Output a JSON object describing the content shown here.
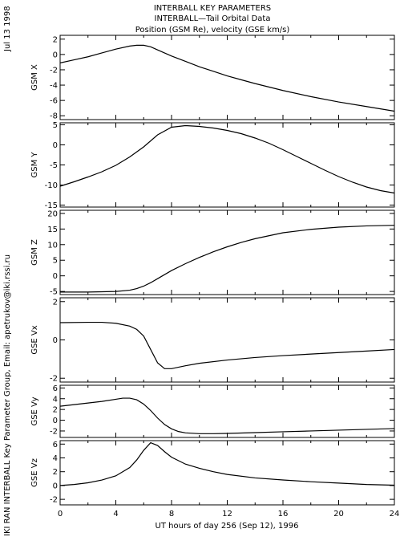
{
  "header": {
    "date": "Jul 13 1998",
    "line1": "INTERBALL KEY PARAMETERS",
    "line2": "INTERBALL—Tail Orbital Data",
    "line3": "Position (GSM Re), velocity (GSE km/s)"
  },
  "credit": "IKI RAN INTERBALL Key Parameter Group, Email: apetrukov@iki.rssi.ru",
  "chart_data": {
    "type": "line",
    "xlabel": "UT hours of day 256 (Sep 12), 1996",
    "xlim": [
      0,
      24
    ],
    "xticks": [
      0,
      4,
      8,
      12,
      16,
      20,
      24
    ],
    "panels": [
      {
        "ylabel": "GSM X",
        "ylim": [
          -8.5,
          2.5
        ],
        "yticks": [
          2,
          0,
          -2,
          -4,
          -6,
          -8
        ],
        "series": {
          "x": [
            0,
            1,
            2,
            3,
            4,
            5,
            5.5,
            6,
            6.5,
            7,
            8,
            9,
            10,
            11,
            12,
            13,
            14,
            16,
            18,
            20,
            22,
            24
          ],
          "y": [
            -1.1,
            -0.7,
            -0.3,
            0.2,
            0.7,
            1.1,
            1.2,
            1.2,
            1.0,
            0.6,
            -0.2,
            -0.9,
            -1.6,
            -2.2,
            -2.8,
            -3.3,
            -3.8,
            -4.7,
            -5.5,
            -6.2,
            -6.8,
            -7.4
          ]
        }
      },
      {
        "ylabel": "GSM Y",
        "ylim": [
          -15.5,
          5.5
        ],
        "yticks": [
          5,
          0,
          -5,
          -10,
          -15
        ],
        "series": {
          "x": [
            0,
            1,
            2,
            3,
            4,
            5,
            6,
            7,
            8,
            9,
            10,
            11,
            12,
            13,
            14,
            15,
            16,
            17,
            18,
            19,
            20,
            21,
            22,
            23,
            24
          ],
          "y": [
            -10.3,
            -9.2,
            -8.0,
            -6.7,
            -5.1,
            -3.0,
            -0.5,
            2.5,
            4.4,
            4.8,
            4.6,
            4.2,
            3.6,
            2.8,
            1.7,
            0.4,
            -1.2,
            -2.9,
            -4.6,
            -6.3,
            -7.9,
            -9.3,
            -10.5,
            -11.4,
            -12.0
          ]
        }
      },
      {
        "ylabel": "GSM Z",
        "ylim": [
          -6,
          21
        ],
        "yticks": [
          20,
          15,
          10,
          5,
          0,
          -5
        ],
        "series": {
          "x": [
            0,
            2,
            4,
            5,
            5.5,
            6,
            6.5,
            7,
            8,
            9,
            10,
            11,
            12,
            13,
            14,
            16,
            18,
            20,
            22,
            24
          ],
          "y": [
            -5.2,
            -5.2,
            -5.0,
            -4.6,
            -4.1,
            -3.3,
            -2.2,
            -0.9,
            1.7,
            3.9,
            5.9,
            7.7,
            9.3,
            10.7,
            11.9,
            13.8,
            14.9,
            15.6,
            16.0,
            16.2
          ]
        }
      },
      {
        "ylabel": "GSE Vx",
        "ylim": [
          -2.2,
          2.2
        ],
        "yticks": [
          2,
          0,
          -2
        ],
        "series": {
          "x": [
            0,
            2,
            3,
            4,
            5,
            5.5,
            6,
            6.5,
            7,
            7.5,
            8,
            9,
            10,
            12,
            14,
            16,
            18,
            20,
            22,
            24
          ],
          "y": [
            0.9,
            0.92,
            0.92,
            0.87,
            0.72,
            0.55,
            0.2,
            -0.5,
            -1.2,
            -1.5,
            -1.5,
            -1.35,
            -1.22,
            -1.05,
            -0.92,
            -0.82,
            -0.74,
            -0.66,
            -0.58,
            -0.5
          ]
        }
      },
      {
        "ylabel": "GSE Vy",
        "ylim": [
          -3.2,
          6.5
        ],
        "yticks": [
          6,
          4,
          2,
          0,
          -2
        ],
        "series": {
          "x": [
            0,
            1,
            2,
            3,
            4,
            4.5,
            5,
            5.5,
            6,
            6.5,
            7,
            7.5,
            8,
            8.5,
            9,
            10,
            11,
            12,
            14,
            16,
            18,
            20,
            22,
            24
          ],
          "y": [
            2.6,
            2.9,
            3.2,
            3.5,
            3.9,
            4.1,
            4.1,
            3.8,
            3.0,
            1.8,
            0.4,
            -0.8,
            -1.6,
            -2.1,
            -2.35,
            -2.5,
            -2.5,
            -2.45,
            -2.3,
            -2.15,
            -2.0,
            -1.85,
            -1.7,
            -1.55
          ]
        }
      },
      {
        "ylabel": "GSE Vz",
        "ylim": [
          -2.8,
          6.5
        ],
        "yticks": [
          6,
          4,
          2,
          0,
          -2
        ],
        "series": {
          "x": [
            0,
            1,
            2,
            3,
            4,
            5,
            5.5,
            6,
            6.5,
            7,
            7.5,
            8,
            9,
            10,
            11,
            12,
            14,
            16,
            18,
            20,
            22,
            24
          ],
          "y": [
            0.0,
            0.15,
            0.4,
            0.8,
            1.4,
            2.6,
            3.7,
            5.1,
            6.2,
            5.8,
            4.9,
            4.1,
            3.1,
            2.5,
            2.0,
            1.6,
            1.1,
            0.8,
            0.55,
            0.35,
            0.15,
            0.05
          ]
        }
      }
    ]
  }
}
